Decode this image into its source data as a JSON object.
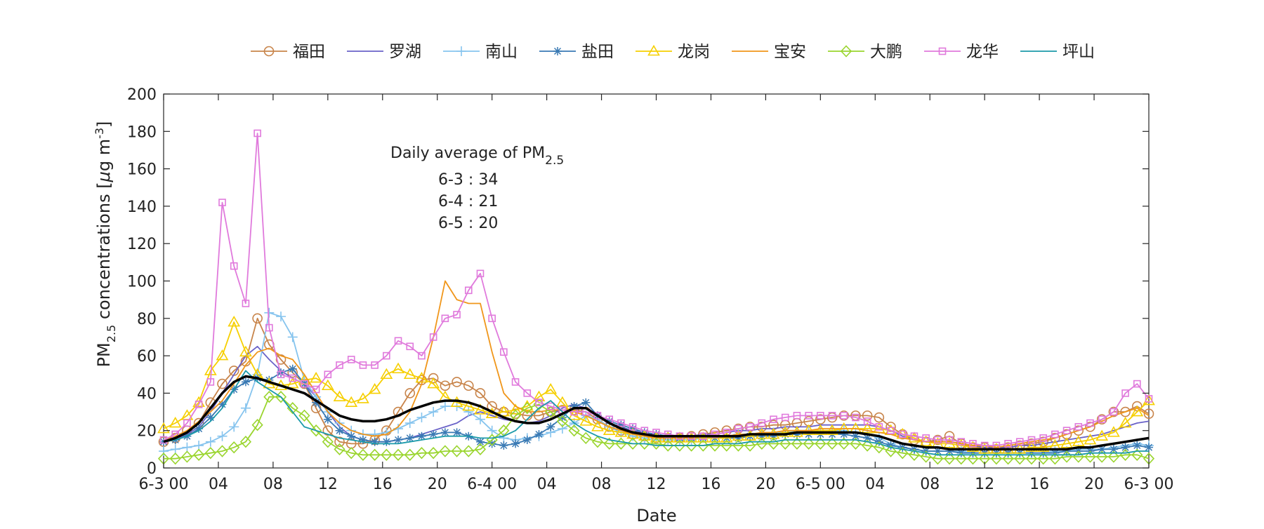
{
  "chart_data": {
    "type": "line",
    "xlabel": "Date",
    "ylabel": "PM",
    "ylabel_sub": "2.5",
    "ylabel_rest": " concentrations [",
    "ylabel_mu": "μ",
    "ylabel_unit": "g m",
    "ylabel_sup": "-3",
    "ylabel_close": "]",
    "ylim": [
      0,
      200
    ],
    "yticks": [
      0,
      20,
      40,
      60,
      80,
      100,
      120,
      140,
      160,
      180,
      200
    ],
    "xlim": [
      0,
      72
    ],
    "xticks": [
      {
        "x": 0,
        "label": "6-3 00"
      },
      {
        "x": 4,
        "label": "04"
      },
      {
        "x": 8,
        "label": "08"
      },
      {
        "x": 12,
        "label": "12"
      },
      {
        "x": 16,
        "label": "16"
      },
      {
        "x": 20,
        "label": "20"
      },
      {
        "x": 24,
        "label": "6-4 00"
      },
      {
        "x": 28,
        "label": "04"
      },
      {
        "x": 32,
        "label": "08"
      },
      {
        "x": 36,
        "label": "12"
      },
      {
        "x": 40,
        "label": "16"
      },
      {
        "x": 44,
        "label": "20"
      },
      {
        "x": 48,
        "label": "6-5 00"
      },
      {
        "x": 52,
        "label": "04"
      },
      {
        "x": 56,
        "label": "08"
      },
      {
        "x": 60,
        "label": "12"
      },
      {
        "x": 64,
        "label": "16"
      },
      {
        "x": 68,
        "label": "20"
      },
      {
        "x": 72,
        "label": "6-3 00"
      }
    ],
    "grid": false,
    "legend_position": "top",
    "annotation": {
      "title": "Daily average of PM",
      "title_sub": "2.5",
      "lines": [
        "6-3 : 34",
        "6-4 : 21",
        "6-5 : 20"
      ]
    },
    "series": [
      {
        "name": "福田",
        "color": "#c8844a",
        "marker": "circle",
        "markevery": 1,
        "values": [
          14,
          16,
          20,
          24,
          35,
          45,
          52,
          57,
          80,
          66,
          58,
          51,
          45,
          32,
          20,
          14,
          13,
          13,
          15,
          20,
          30,
          40,
          47,
          48,
          44,
          46,
          44,
          40,
          33,
          30,
          29,
          28,
          28,
          30,
          31,
          31,
          30,
          26,
          22,
          20,
          18,
          17,
          16,
          16,
          16,
          17,
          18,
          19,
          20,
          21,
          22,
          22,
          23,
          23,
          24,
          25,
          26,
          27,
          28,
          28,
          28,
          27,
          22,
          18,
          15,
          14,
          15,
          17,
          13,
          11,
          11,
          10,
          11,
          12,
          13,
          14,
          16,
          18,
          20,
          22,
          26,
          30,
          30,
          33,
          29
        ]
      },
      {
        "name": "罗湖",
        "color": "#6a62c8",
        "marker": "none",
        "values": [
          14,
          15,
          18,
          22,
          30,
          40,
          50,
          60,
          65,
          58,
          52,
          48,
          45,
          38,
          30,
          22,
          17,
          15,
          14,
          14,
          15,
          16,
          18,
          20,
          22,
          24,
          28,
          30,
          28,
          26,
          25,
          24,
          25,
          28,
          32,
          34,
          32,
          28,
          24,
          22,
          20,
          19,
          18,
          17,
          17,
          17,
          18,
          18,
          19,
          20,
          20,
          21,
          21,
          22,
          22,
          22,
          23,
          23,
          23,
          23,
          23,
          22,
          20,
          17,
          15,
          14,
          14,
          14,
          13,
          12,
          11,
          11,
          11,
          12,
          12,
          13,
          14,
          15,
          16,
          17,
          18,
          20,
          22,
          24,
          25
        ]
      },
      {
        "name": "南山",
        "color": "#86c4ee",
        "marker": "plus",
        "markevery": 1,
        "values": [
          9,
          10,
          11,
          12,
          14,
          17,
          22,
          32,
          50,
          83,
          81,
          70,
          47,
          38,
          30,
          24,
          20,
          18,
          18,
          19,
          21,
          24,
          27,
          30,
          33,
          33,
          30,
          26,
          20,
          16,
          15,
          16,
          17,
          19,
          21,
          24,
          28,
          26,
          22,
          19,
          17,
          16,
          15,
          15,
          15,
          15,
          16,
          16,
          17,
          18,
          18,
          18,
          19,
          19,
          20,
          20,
          20,
          20,
          20,
          19,
          18,
          16,
          13,
          11,
          10,
          9,
          9,
          9,
          9,
          8,
          8,
          8,
          8,
          8,
          8,
          8,
          9,
          9,
          10,
          10,
          10,
          11,
          12,
          13,
          12
        ]
      },
      {
        "name": "盐田",
        "color": "#3a7ab4",
        "marker": "star",
        "markevery": 1,
        "values": [
          14,
          15,
          17,
          21,
          27,
          34,
          42,
          46,
          48,
          47,
          51,
          53,
          45,
          35,
          26,
          20,
          17,
          15,
          14,
          14,
          15,
          16,
          17,
          18,
          19,
          19,
          17,
          14,
          13,
          12,
          13,
          15,
          18,
          22,
          27,
          33,
          35,
          28,
          25,
          23,
          21,
          19,
          18,
          17,
          16,
          16,
          16,
          16,
          16,
          16,
          17,
          17,
          17,
          18,
          18,
          18,
          18,
          18,
          18,
          17,
          16,
          14,
          12,
          11,
          10,
          9,
          9,
          9,
          8,
          8,
          8,
          8,
          8,
          8,
          8,
          8,
          8,
          9,
          9,
          9,
          10,
          10,
          11,
          12,
          11
        ]
      },
      {
        "name": "龙岗",
        "color": "#f6cf00",
        "marker": "triangle",
        "markevery": 1,
        "values": [
          21,
          24,
          28,
          35,
          52,
          60,
          78,
          62,
          50,
          45,
          44,
          45,
          47,
          48,
          44,
          38,
          35,
          37,
          42,
          50,
          53,
          50,
          48,
          45,
          38,
          35,
          33,
          31,
          29,
          30,
          31,
          33,
          38,
          42,
          35,
          28,
          25,
          22,
          20,
          19,
          18,
          17,
          16,
          16,
          16,
          16,
          16,
          16,
          16,
          17,
          17,
          18,
          18,
          19,
          19,
          20,
          20,
          20,
          21,
          21,
          21,
          21,
          20,
          18,
          16,
          14,
          13,
          13,
          12,
          11,
          10,
          10,
          10,
          10,
          11,
          11,
          12,
          13,
          14,
          15,
          17,
          19,
          24,
          30,
          36
        ]
      },
      {
        "name": "宝安",
        "color": "#f0961a",
        "marker": "none",
        "values": [
          15,
          17,
          20,
          25,
          30,
          36,
          45,
          55,
          62,
          64,
          60,
          58,
          50,
          40,
          30,
          24,
          20,
          18,
          17,
          18,
          22,
          30,
          45,
          70,
          100,
          90,
          88,
          88,
          62,
          40,
          33,
          30,
          30,
          31,
          31,
          30,
          28,
          25,
          22,
          20,
          18,
          17,
          16,
          16,
          16,
          16,
          17,
          17,
          17,
          18,
          18,
          19,
          19,
          20,
          20,
          20,
          21,
          21,
          21,
          21,
          20,
          19,
          18,
          16,
          15,
          14,
          14,
          14,
          13,
          12,
          12,
          11,
          12,
          13,
          14,
          15,
          16,
          18,
          20,
          22,
          25,
          28,
          30,
          32,
          28
        ]
      },
      {
        "name": "大鹏",
        "color": "#9ad52e",
        "marker": "diamond",
        "markevery": 1,
        "values": [
          5,
          5,
          6,
          7,
          8,
          9,
          11,
          14,
          23,
          38,
          38,
          32,
          28,
          20,
          14,
          10,
          8,
          7,
          7,
          7,
          7,
          7,
          8,
          8,
          9,
          9,
          9,
          10,
          15,
          20,
          28,
          32,
          34,
          30,
          25,
          20,
          16,
          14,
          13,
          13,
          13,
          13,
          13,
          12,
          12,
          12,
          12,
          12,
          12,
          12,
          12,
          13,
          13,
          13,
          13,
          13,
          13,
          13,
          13,
          13,
          12,
          11,
          9,
          8,
          7,
          6,
          5,
          5,
          5,
          5,
          5,
          5,
          5,
          5,
          5,
          5,
          5,
          6,
          6,
          6,
          6,
          6,
          7,
          7,
          5
        ]
      },
      {
        "name": "龙华",
        "color": "#e07adc",
        "marker": "square",
        "markevery": 1,
        "values": [
          15,
          18,
          24,
          34,
          46,
          142,
          108,
          88,
          179,
          75,
          50,
          48,
          45,
          42,
          50,
          55,
          58,
          55,
          55,
          60,
          68,
          65,
          60,
          70,
          80,
          82,
          95,
          104,
          80,
          62,
          46,
          40,
          35,
          33,
          31,
          30,
          30,
          28,
          26,
          24,
          22,
          20,
          19,
          18,
          17,
          17,
          17,
          18,
          19,
          21,
          22,
          24,
          26,
          27,
          28,
          28,
          28,
          28,
          28,
          27,
          25,
          22,
          20,
          18,
          17,
          16,
          15,
          15,
          14,
          13,
          12,
          12,
          13,
          14,
          15,
          16,
          18,
          20,
          22,
          24,
          26,
          30,
          40,
          45,
          37
        ]
      },
      {
        "name": "坪山",
        "color": "#1b9aaa",
        "marker": "none",
        "values": [
          14,
          15,
          17,
          20,
          25,
          32,
          42,
          52,
          46,
          42,
          38,
          30,
          22,
          20,
          18,
          16,
          15,
          14,
          13,
          13,
          13,
          14,
          15,
          16,
          17,
          17,
          17,
          16,
          16,
          17,
          20,
          26,
          32,
          36,
          30,
          24,
          20,
          17,
          15,
          14,
          13,
          13,
          12,
          12,
          12,
          12,
          12,
          13,
          13,
          13,
          14,
          14,
          14,
          15,
          15,
          15,
          15,
          15,
          15,
          15,
          14,
          13,
          11,
          10,
          9,
          8,
          7,
          7,
          7,
          7,
          7,
          7,
          7,
          7,
          7,
          7,
          7,
          7,
          7,
          8,
          8,
          8,
          8,
          9,
          9
        ]
      },
      {
        "name": "",
        "color": "#000000",
        "marker": "none",
        "width": 3.5,
        "values": [
          14,
          16,
          19,
          24,
          32,
          40,
          46,
          49,
          48,
          46,
          44,
          42,
          40,
          36,
          32,
          28,
          26,
          25,
          25,
          26,
          28,
          31,
          33,
          35,
          36,
          36,
          35,
          33,
          30,
          27,
          25,
          24,
          24,
          26,
          29,
          32,
          32,
          28,
          24,
          21,
          19,
          18,
          17,
          17,
          17,
          17,
          17,
          17,
          17,
          17,
          18,
          18,
          18,
          18,
          19,
          19,
          19,
          19,
          19,
          19,
          18,
          17,
          15,
          13,
          12,
          11,
          11,
          10,
          10,
          10,
          10,
          10,
          10,
          10,
          10,
          10,
          10,
          10,
          11,
          11,
          12,
          13,
          14,
          15,
          16
        ]
      }
    ]
  }
}
